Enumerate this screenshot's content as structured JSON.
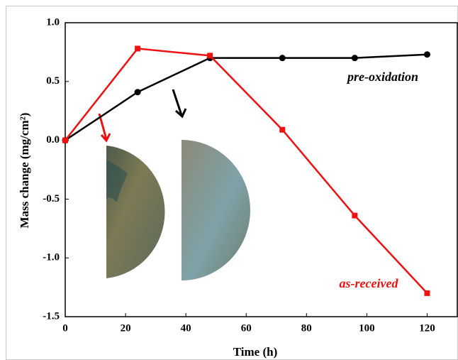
{
  "chart_data": {
    "type": "line",
    "x_label": "Time (h)",
    "y_label": "Mass change (mg/cm²)",
    "x": [
      0,
      24,
      48,
      72,
      96,
      120
    ],
    "series": [
      {
        "name": "pre-oxidation",
        "color": "#000000",
        "marker": "circle",
        "values": [
          0,
          0.41,
          0.7,
          0.7,
          0.7,
          0.73
        ]
      },
      {
        "name": "as-received",
        "color": "#ee1111",
        "marker": "square",
        "values": [
          0,
          0.78,
          0.72,
          0.09,
          -0.64,
          -1.3
        ]
      }
    ],
    "xlim": [
      0,
      130
    ],
    "xticks": [
      0,
      20,
      40,
      60,
      80,
      100,
      120
    ],
    "ylim": [
      -1.5,
      1.0
    ],
    "yticks": [
      {
        "value": -1.5,
        "label": "-1.5"
      },
      {
        "value": -1.0,
        "label": "-1.0"
      },
      {
        "value": -0.5,
        "label": "-0.5"
      },
      {
        "value": 0,
        "label": "0.0"
      },
      {
        "value": 0.5,
        "label": "0.5"
      },
      {
        "value": 1.0,
        "label": "1.0"
      }
    ]
  }
}
